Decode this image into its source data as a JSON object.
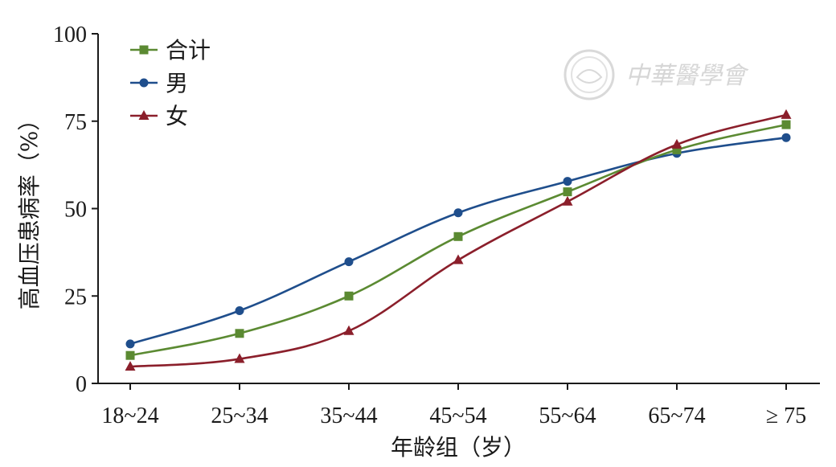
{
  "chart_data": {
    "type": "line",
    "title": "",
    "xlabel": "年龄组（岁）",
    "ylabel": "高血压患病率（%）",
    "categories": [
      "18~24",
      "25~34",
      "35~44",
      "45~54",
      "55~64",
      "65~74",
      "≥ 75"
    ],
    "ylim": [
      0,
      100
    ],
    "yticks": [
      0,
      25,
      50,
      75,
      100
    ],
    "grid": false,
    "legend_position": "top-left",
    "series": [
      {
        "name": "合计",
        "color": "#5b8a32",
        "marker": "square",
        "values": [
          8,
          14.3,
          25,
          42,
          54.8,
          66.8,
          74
        ]
      },
      {
        "name": "男",
        "color": "#1f4e8c",
        "marker": "circle",
        "values": [
          11.3,
          20.8,
          34.8,
          48.8,
          57.8,
          65.8,
          70.3
        ]
      },
      {
        "name": "女",
        "color": "#8b1f2b",
        "marker": "triangle",
        "values": [
          4.8,
          7,
          15,
          35.3,
          52,
          68.3,
          76.8
        ]
      }
    ]
  },
  "watermark": {
    "text": "中華醫學會",
    "seal_icon": "cma-seal-icon"
  }
}
